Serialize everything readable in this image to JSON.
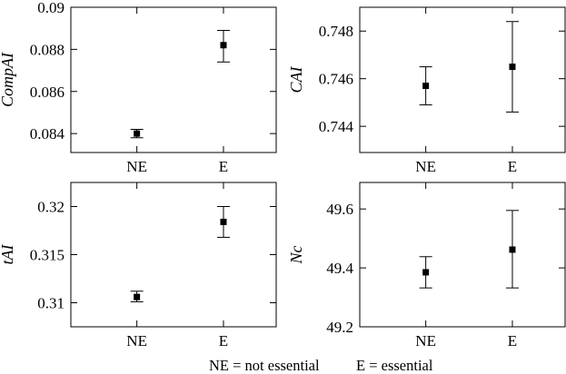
{
  "caption": {
    "left": "NE = not essential",
    "right": "E = essential"
  },
  "colors": {
    "ink": "#000000",
    "background": "#ffffff"
  },
  "chart_data": [
    {
      "type": "scatter",
      "error_bars": true,
      "ylabel": "CompAI",
      "categories": [
        "NE",
        "E"
      ],
      "values": [
        0.084,
        0.0882
      ],
      "errors": [
        [
          0.0838,
          0.0842
        ],
        [
          0.0874,
          0.0889
        ]
      ],
      "ylim": [
        0.0831,
        0.09
      ],
      "yticks": [
        0.084,
        0.086,
        0.088,
        0.09
      ],
      "ytick_labels": [
        "0.084",
        "0.086",
        "0.088",
        "0.09"
      ],
      "grid": false
    },
    {
      "type": "scatter",
      "error_bars": true,
      "ylabel": "CAI",
      "categories": [
        "NE",
        "E"
      ],
      "values": [
        0.7457,
        0.7465
      ],
      "errors": [
        [
          0.7449,
          0.7465
        ],
        [
          0.7446,
          0.7484
        ]
      ],
      "ylim": [
        0.7429,
        0.749
      ],
      "yticks": [
        0.744,
        0.746,
        0.748
      ],
      "ytick_labels": [
        "0.744",
        "0.746",
        "0.748"
      ],
      "grid": false
    },
    {
      "type": "scatter",
      "error_bars": true,
      "ylabel": "tAI",
      "categories": [
        "NE",
        "E"
      ],
      "values": [
        0.3106,
        0.3184
      ],
      "errors": [
        [
          0.3101,
          0.3112
        ],
        [
          0.3168,
          0.32
        ]
      ],
      "ylim": [
        0.3075,
        0.3225
      ],
      "yticks": [
        0.31,
        0.315,
        0.32
      ],
      "ytick_labels": [
        "0.31",
        "0.315",
        "0.32"
      ],
      "grid": false
    },
    {
      "type": "scatter",
      "error_bars": true,
      "ylabel": "Nc",
      "categories": [
        "NE",
        "E"
      ],
      "values": [
        49.385,
        49.462
      ],
      "errors": [
        [
          49.332,
          49.438
        ],
        [
          49.332,
          49.595
        ]
      ],
      "ylim": [
        49.2,
        49.69
      ],
      "yticks": [
        49.2,
        49.4,
        49.6
      ],
      "ytick_labels": [
        "49.2",
        "49.4",
        "49.6"
      ],
      "grid": false
    }
  ]
}
